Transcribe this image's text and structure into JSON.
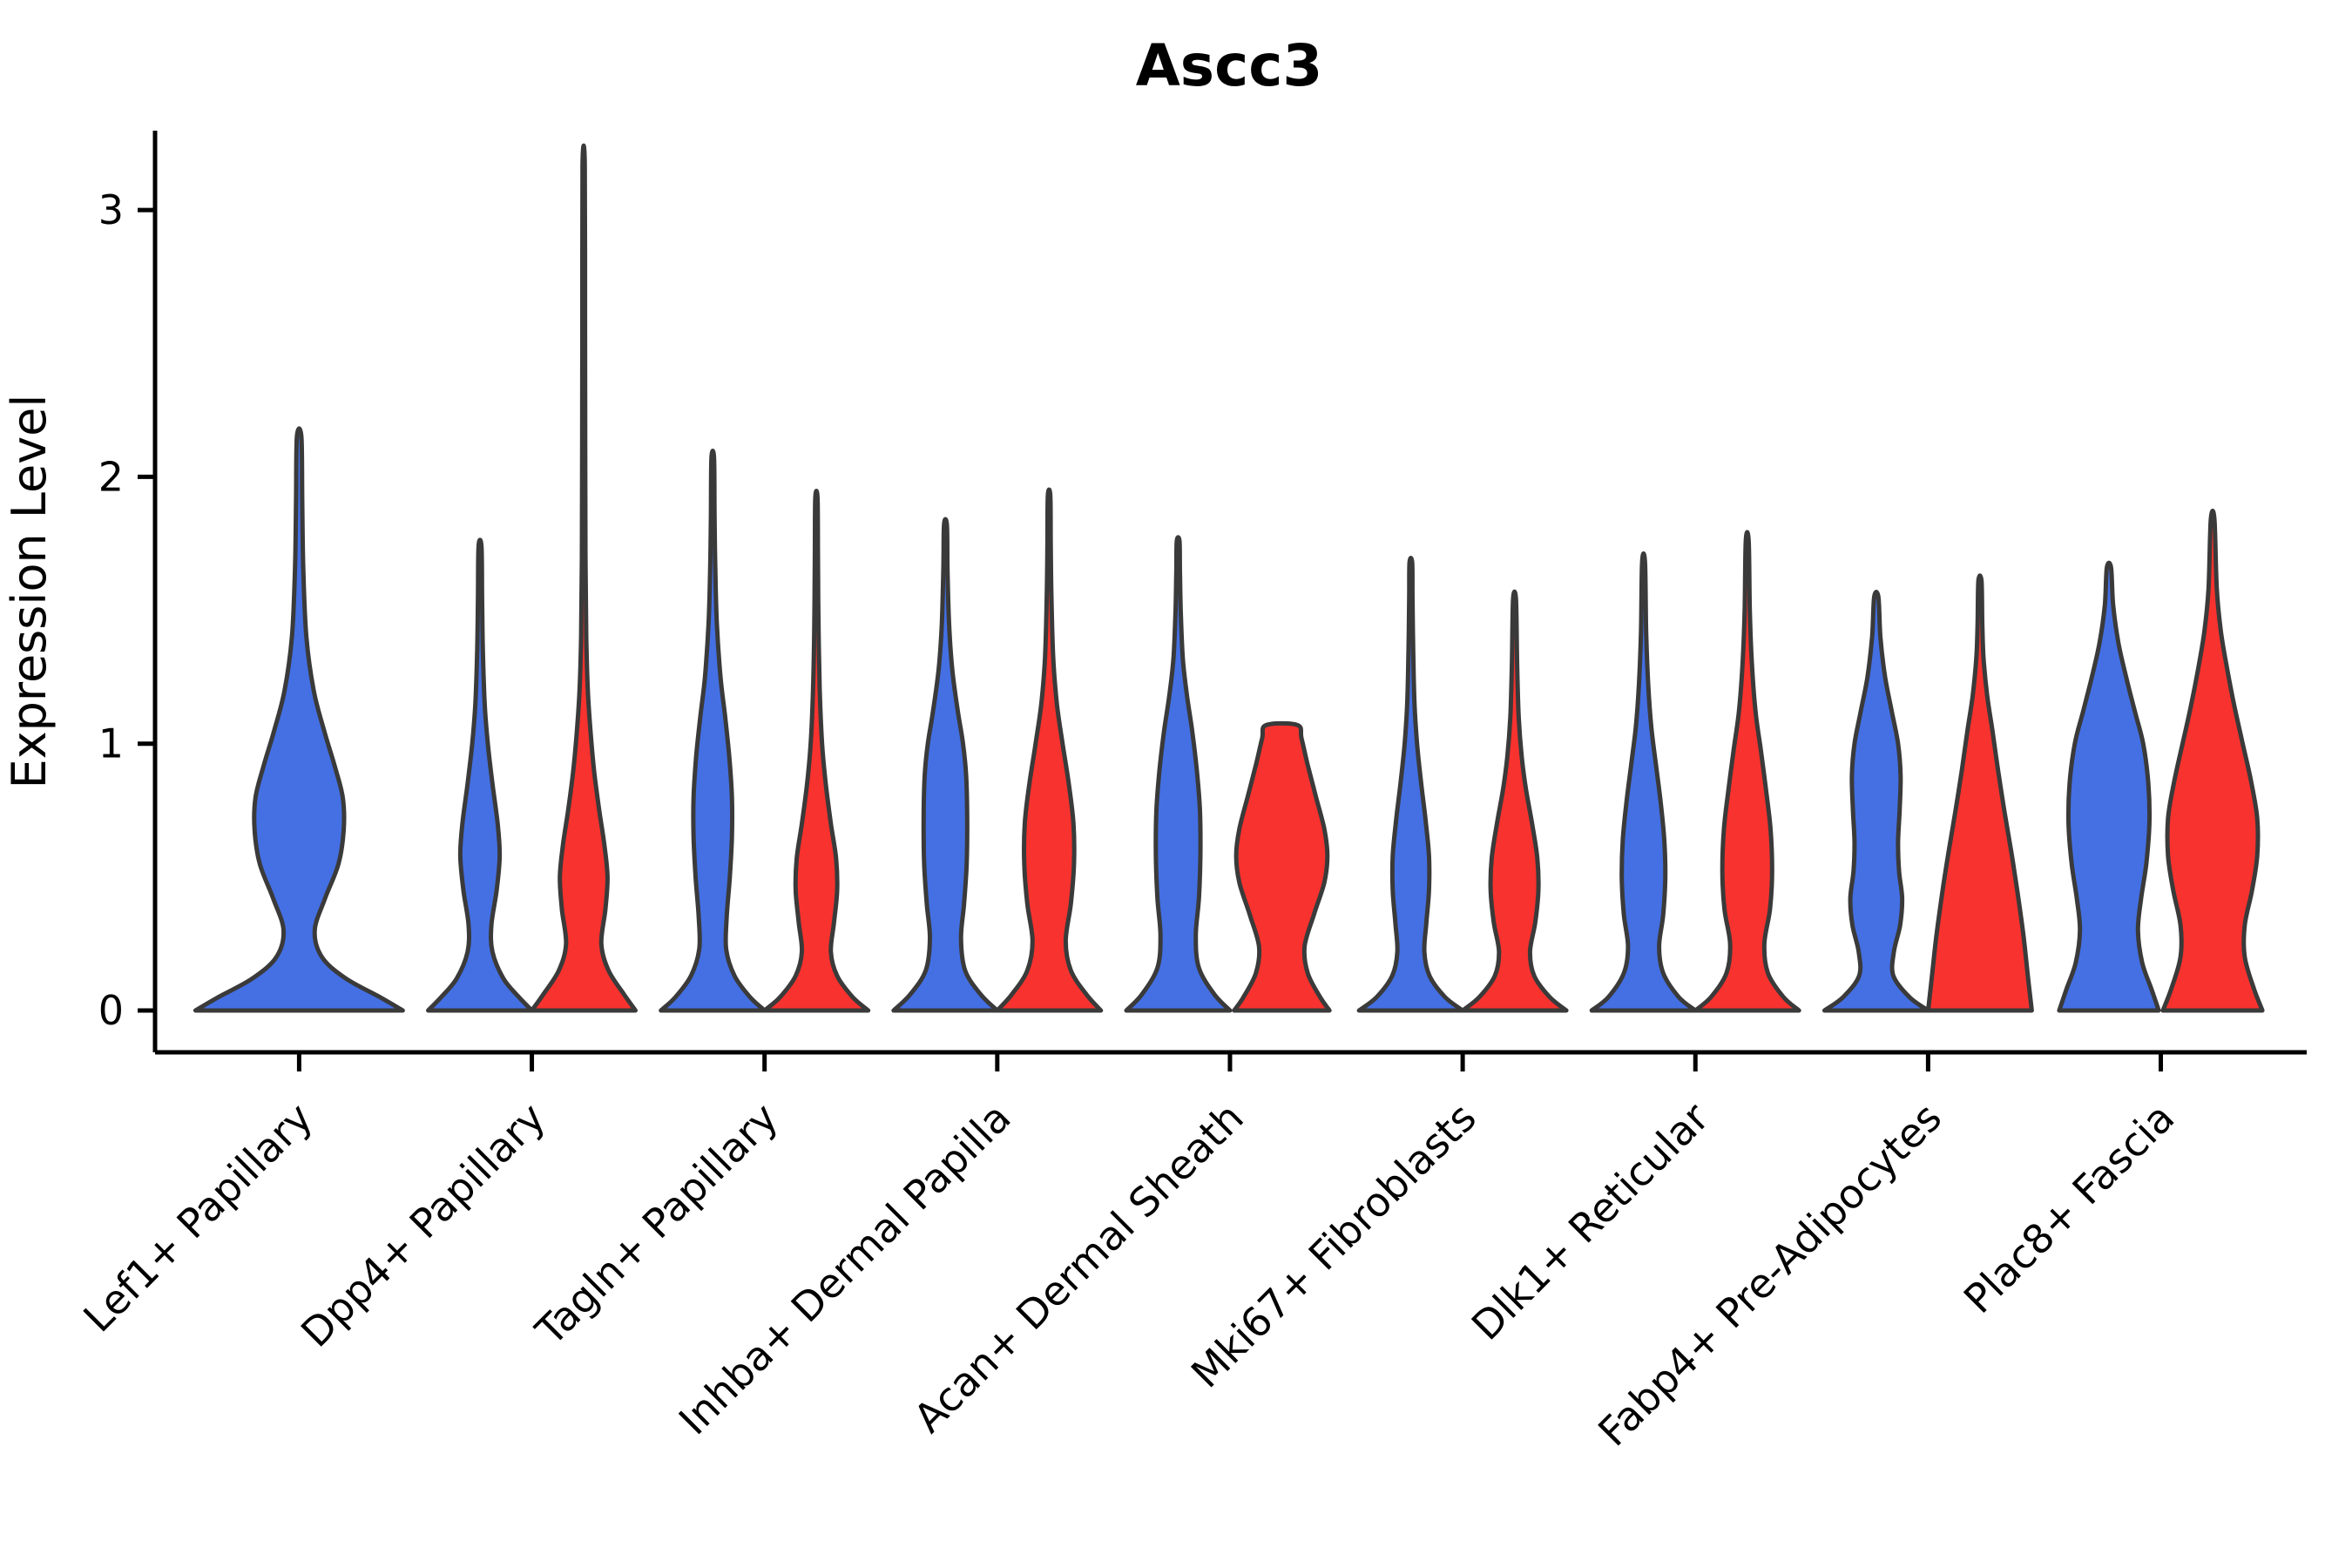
{
  "title": "Ascc3",
  "axes": {
    "y_label": "Expression Level",
    "y_ticks": [
      0,
      1,
      2,
      3
    ],
    "x_tick_count": 9
  },
  "colors": {
    "blue_fill": "#4470e4",
    "red_fill": "#f8322e",
    "violin_outline": "#3a3a3a",
    "axis": "#000000",
    "background": "#ffffff"
  },
  "chart_data": {
    "type": "violin",
    "title": "Ascc3",
    "xlabel": "",
    "ylabel": "Expression Level",
    "ylim": [
      -0.16,
      3.35
    ],
    "y_ticks": [
      0,
      1,
      2,
      3
    ],
    "grid": false,
    "legend": "none",
    "categories": [
      "Lef1+ Papillary",
      "Dpp4+ Papillary",
      "Tagln+ Papillary",
      "Inhba+ Dermal Papilla",
      "Acan+ Dermal Sheath",
      "Mki67+ Fibroblasts",
      "Dlk1+ Reticular",
      "Fabp4+ Pre-Adipocytes",
      "Plac8+ Fascia"
    ],
    "series": [
      {
        "name": "blue",
        "color": "#4470e4",
        "max_expression": [
          2.15,
          1.74,
          2.07,
          1.82,
          1.76,
          1.68,
          1.68,
          1.55,
          1.66
        ]
      },
      {
        "name": "red",
        "color": "#f8322e",
        "max_expression": [
          null,
          3.17,
          1.92,
          1.93,
          1.07,
          1.54,
          1.76,
          1.61,
          1.84
        ]
      }
    ],
    "violins": [
      {
        "category_index": 0,
        "category": "Lef1+ Papillary",
        "group": "blue",
        "max": 2.15,
        "flat_top": false,
        "profile": [
          [
            0,
            1.0
          ],
          [
            0.05,
            0.78
          ],
          [
            0.12,
            0.45
          ],
          [
            0.2,
            0.22
          ],
          [
            0.3,
            0.15
          ],
          [
            0.42,
            0.25
          ],
          [
            0.55,
            0.38
          ],
          [
            0.68,
            0.43
          ],
          [
            0.8,
            0.42
          ],
          [
            0.92,
            0.34
          ],
          [
            1.05,
            0.24
          ],
          [
            1.2,
            0.14
          ],
          [
            1.4,
            0.07
          ],
          [
            1.65,
            0.04
          ],
          [
            1.9,
            0.03
          ],
          [
            2.15,
            0.022
          ]
        ]
      },
      {
        "category_index": 1,
        "category": "Dpp4+ Papillary",
        "group": "blue",
        "max": 1.74,
        "flat_top": false,
        "profile": [
          [
            0,
            1.0
          ],
          [
            0.05,
            0.75
          ],
          [
            0.12,
            0.45
          ],
          [
            0.22,
            0.24
          ],
          [
            0.32,
            0.22
          ],
          [
            0.45,
            0.32
          ],
          [
            0.58,
            0.38
          ],
          [
            0.7,
            0.34
          ],
          [
            0.85,
            0.24
          ],
          [
            1.0,
            0.15
          ],
          [
            1.15,
            0.09
          ],
          [
            1.35,
            0.055
          ],
          [
            1.55,
            0.04
          ],
          [
            1.74,
            0.028
          ]
        ]
      },
      {
        "category_index": 1,
        "category": "Dpp4+ Papillary",
        "group": "red",
        "max": 3.17,
        "flat_top": false,
        "profile": [
          [
            0,
            1.0
          ],
          [
            0.06,
            0.78
          ],
          [
            0.15,
            0.48
          ],
          [
            0.25,
            0.34
          ],
          [
            0.38,
            0.42
          ],
          [
            0.5,
            0.46
          ],
          [
            0.62,
            0.4
          ],
          [
            0.75,
            0.3
          ],
          [
            0.9,
            0.2
          ],
          [
            1.05,
            0.13
          ],
          [
            1.2,
            0.08
          ],
          [
            1.4,
            0.05
          ],
          [
            1.7,
            0.035
          ],
          [
            2.1,
            0.03
          ],
          [
            2.6,
            0.026
          ],
          [
            3.17,
            0.022
          ]
        ]
      },
      {
        "category_index": 2,
        "category": "Tagln+ Papillary",
        "group": "blue",
        "max": 2.07,
        "flat_top": false,
        "profile": [
          [
            0,
            1.0
          ],
          [
            0.05,
            0.72
          ],
          [
            0.13,
            0.42
          ],
          [
            0.23,
            0.26
          ],
          [
            0.35,
            0.27
          ],
          [
            0.5,
            0.33
          ],
          [
            0.65,
            0.37
          ],
          [
            0.8,
            0.37
          ],
          [
            0.95,
            0.32
          ],
          [
            1.1,
            0.24
          ],
          [
            1.25,
            0.15
          ],
          [
            1.45,
            0.08
          ],
          [
            1.65,
            0.05
          ],
          [
            1.85,
            0.035
          ],
          [
            2.07,
            0.025
          ]
        ]
      },
      {
        "category_index": 2,
        "category": "Tagln+ Papillary",
        "group": "red",
        "max": 1.92,
        "flat_top": false,
        "profile": [
          [
            0,
            1.0
          ],
          [
            0.05,
            0.7
          ],
          [
            0.13,
            0.4
          ],
          [
            0.22,
            0.28
          ],
          [
            0.33,
            0.34
          ],
          [
            0.45,
            0.4
          ],
          [
            0.57,
            0.38
          ],
          [
            0.7,
            0.28
          ],
          [
            0.85,
            0.18
          ],
          [
            1.0,
            0.11
          ],
          [
            1.2,
            0.065
          ],
          [
            1.45,
            0.04
          ],
          [
            1.7,
            0.03
          ],
          [
            1.92,
            0.022
          ]
        ]
      },
      {
        "category_index": 3,
        "category": "Inhba+ Dermal Papilla",
        "group": "blue",
        "max": 1.82,
        "flat_top": false,
        "profile": [
          [
            0,
            1.0
          ],
          [
            0.06,
            0.68
          ],
          [
            0.15,
            0.38
          ],
          [
            0.27,
            0.3
          ],
          [
            0.4,
            0.36
          ],
          [
            0.55,
            0.41
          ],
          [
            0.72,
            0.42
          ],
          [
            0.88,
            0.4
          ],
          [
            1.0,
            0.34
          ],
          [
            1.12,
            0.24
          ],
          [
            1.28,
            0.13
          ],
          [
            1.45,
            0.07
          ],
          [
            1.65,
            0.04
          ],
          [
            1.82,
            0.028
          ]
        ]
      },
      {
        "category_index": 3,
        "category": "Inhba+ Dermal Papilla",
        "group": "red",
        "max": 1.93,
        "flat_top": false,
        "profile": [
          [
            0,
            1.0
          ],
          [
            0.06,
            0.72
          ],
          [
            0.15,
            0.42
          ],
          [
            0.26,
            0.32
          ],
          [
            0.4,
            0.42
          ],
          [
            0.55,
            0.48
          ],
          [
            0.7,
            0.47
          ],
          [
            0.85,
            0.38
          ],
          [
            1.0,
            0.26
          ],
          [
            1.15,
            0.15
          ],
          [
            1.32,
            0.08
          ],
          [
            1.55,
            0.045
          ],
          [
            1.75,
            0.032
          ],
          [
            1.93,
            0.024
          ]
        ]
      },
      {
        "category_index": 4,
        "category": "Acan+ Dermal Sheath",
        "group": "blue",
        "max": 1.76,
        "flat_top": false,
        "profile": [
          [
            0,
            1.0
          ],
          [
            0.06,
            0.7
          ],
          [
            0.16,
            0.4
          ],
          [
            0.28,
            0.34
          ],
          [
            0.42,
            0.4
          ],
          [
            0.58,
            0.43
          ],
          [
            0.75,
            0.42
          ],
          [
            0.9,
            0.36
          ],
          [
            1.05,
            0.27
          ],
          [
            1.18,
            0.17
          ],
          [
            1.32,
            0.09
          ],
          [
            1.5,
            0.05
          ],
          [
            1.65,
            0.035
          ],
          [
            1.76,
            0.026
          ]
        ]
      },
      {
        "category_index": 4,
        "category": "Acan+ Dermal Sheath",
        "group": "red",
        "max": 1.07,
        "flat_top": true,
        "profile": [
          [
            0,
            0.92
          ],
          [
            0.05,
            0.74
          ],
          [
            0.14,
            0.5
          ],
          [
            0.24,
            0.44
          ],
          [
            0.36,
            0.62
          ],
          [
            0.48,
            0.82
          ],
          [
            0.58,
            0.88
          ],
          [
            0.68,
            0.82
          ],
          [
            0.8,
            0.66
          ],
          [
            0.92,
            0.5
          ],
          [
            1.02,
            0.38
          ],
          [
            1.07,
            0.3
          ]
        ]
      },
      {
        "category_index": 5,
        "category": "Mki67+ Fibroblasts",
        "group": "blue",
        "max": 1.68,
        "flat_top": false,
        "profile": [
          [
            0,
            1.0
          ],
          [
            0.05,
            0.66
          ],
          [
            0.13,
            0.36
          ],
          [
            0.22,
            0.26
          ],
          [
            0.33,
            0.3
          ],
          [
            0.45,
            0.35
          ],
          [
            0.58,
            0.35
          ],
          [
            0.72,
            0.28
          ],
          [
            0.85,
            0.2
          ],
          [
            1.0,
            0.12
          ],
          [
            1.15,
            0.07
          ],
          [
            1.35,
            0.045
          ],
          [
            1.55,
            0.032
          ],
          [
            1.68,
            0.025
          ]
        ]
      },
      {
        "category_index": 5,
        "category": "Mki67+ Fibroblasts",
        "group": "red",
        "max": 1.54,
        "flat_top": false,
        "profile": [
          [
            0,
            1.0
          ],
          [
            0.05,
            0.68
          ],
          [
            0.13,
            0.38
          ],
          [
            0.22,
            0.3
          ],
          [
            0.33,
            0.4
          ],
          [
            0.45,
            0.46
          ],
          [
            0.57,
            0.44
          ],
          [
            0.7,
            0.34
          ],
          [
            0.83,
            0.22
          ],
          [
            0.95,
            0.14
          ],
          [
            1.1,
            0.08
          ],
          [
            1.3,
            0.05
          ],
          [
            1.54,
            0.028
          ]
        ]
      },
      {
        "category_index": 6,
        "category": "Dlk1+ Reticular",
        "group": "blue",
        "max": 1.68,
        "flat_top": false,
        "profile": [
          [
            0,
            1.0
          ],
          [
            0.05,
            0.68
          ],
          [
            0.14,
            0.38
          ],
          [
            0.24,
            0.3
          ],
          [
            0.36,
            0.38
          ],
          [
            0.5,
            0.42
          ],
          [
            0.64,
            0.4
          ],
          [
            0.78,
            0.33
          ],
          [
            0.92,
            0.24
          ],
          [
            1.06,
            0.15
          ],
          [
            1.22,
            0.09
          ],
          [
            1.42,
            0.05
          ],
          [
            1.68,
            0.028
          ]
        ]
      },
      {
        "category_index": 6,
        "category": "Dlk1+ Reticular",
        "group": "red",
        "max": 1.76,
        "flat_top": false,
        "profile": [
          [
            0,
            1.0
          ],
          [
            0.05,
            0.7
          ],
          [
            0.14,
            0.4
          ],
          [
            0.25,
            0.33
          ],
          [
            0.38,
            0.44
          ],
          [
            0.52,
            0.48
          ],
          [
            0.68,
            0.45
          ],
          [
            0.83,
            0.36
          ],
          [
            0.98,
            0.26
          ],
          [
            1.12,
            0.16
          ],
          [
            1.3,
            0.09
          ],
          [
            1.5,
            0.05
          ],
          [
            1.76,
            0.028
          ]
        ]
      },
      {
        "category_index": 7,
        "category": "Fabp4+ Pre-Adipocytes",
        "group": "blue",
        "max": 1.55,
        "flat_top": false,
        "profile": [
          [
            0,
            1.0
          ],
          [
            0.05,
            0.64
          ],
          [
            0.13,
            0.33
          ],
          [
            0.22,
            0.34
          ],
          [
            0.32,
            0.46
          ],
          [
            0.42,
            0.5
          ],
          [
            0.52,
            0.44
          ],
          [
            0.63,
            0.42
          ],
          [
            0.75,
            0.45
          ],
          [
            0.88,
            0.47
          ],
          [
            1.0,
            0.42
          ],
          [
            1.12,
            0.3
          ],
          [
            1.25,
            0.17
          ],
          [
            1.4,
            0.08
          ],
          [
            1.55,
            0.04
          ]
        ]
      },
      {
        "category_index": 7,
        "category": "Fabp4+ Pre-Adipocytes",
        "group": "red",
        "max": 1.61,
        "flat_top": false,
        "profile": [
          [
            0,
            1.0
          ],
          [
            0.12,
            0.93
          ],
          [
            0.28,
            0.84
          ],
          [
            0.45,
            0.72
          ],
          [
            0.6,
            0.6
          ],
          [
            0.75,
            0.47
          ],
          [
            0.9,
            0.35
          ],
          [
            1.05,
            0.24
          ],
          [
            1.18,
            0.14
          ],
          [
            1.32,
            0.07
          ],
          [
            1.45,
            0.045
          ],
          [
            1.61,
            0.03
          ]
        ]
      },
      {
        "category_index": 8,
        "category": "Plac8+ Fascia",
        "group": "blue",
        "max": 1.66,
        "flat_top": false,
        "profile": [
          [
            0,
            0.96
          ],
          [
            0.08,
            0.82
          ],
          [
            0.18,
            0.64
          ],
          [
            0.3,
            0.56
          ],
          [
            0.42,
            0.62
          ],
          [
            0.55,
            0.72
          ],
          [
            0.7,
            0.78
          ],
          [
            0.85,
            0.76
          ],
          [
            1.0,
            0.66
          ],
          [
            1.12,
            0.5
          ],
          [
            1.25,
            0.33
          ],
          [
            1.38,
            0.18
          ],
          [
            1.52,
            0.08
          ],
          [
            1.66,
            0.04
          ]
        ]
      },
      {
        "category_index": 8,
        "category": "Plac8+ Fascia",
        "group": "red",
        "max": 1.84,
        "flat_top": false,
        "profile": [
          [
            0,
            0.96
          ],
          [
            0.08,
            0.8
          ],
          [
            0.2,
            0.62
          ],
          [
            0.32,
            0.62
          ],
          [
            0.45,
            0.76
          ],
          [
            0.58,
            0.86
          ],
          [
            0.72,
            0.86
          ],
          [
            0.86,
            0.74
          ],
          [
            1.0,
            0.58
          ],
          [
            1.14,
            0.42
          ],
          [
            1.28,
            0.28
          ],
          [
            1.42,
            0.16
          ],
          [
            1.58,
            0.08
          ],
          [
            1.84,
            0.035
          ]
        ]
      }
    ]
  }
}
